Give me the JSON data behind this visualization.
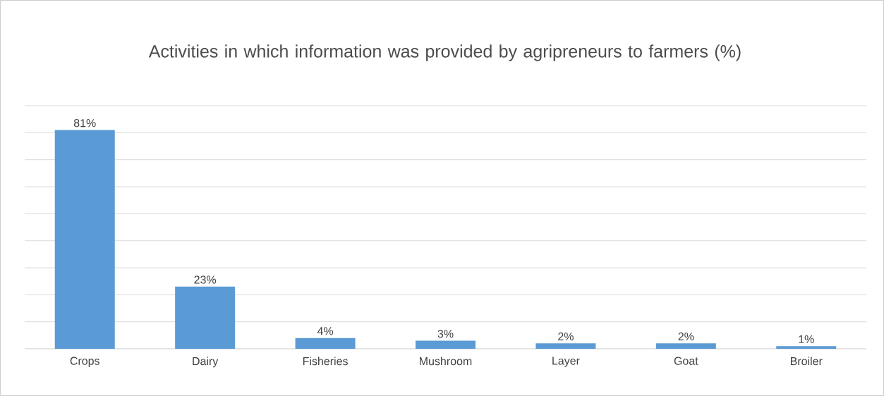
{
  "chart_data": {
    "type": "bar",
    "title": "Activities in which information was provided by agripreneurs to farmers (%)",
    "categories": [
      "Crops",
      "Dairy",
      "Fisheries",
      "Mushroom",
      "Layer",
      "Goat",
      "Broiler"
    ],
    "values": [
      81,
      23,
      4,
      3,
      2,
      2,
      1
    ],
    "value_labels": [
      "81%",
      "23%",
      "4%",
      "3%",
      "2%",
      "2%",
      "1%"
    ],
    "color": "#5b9bd5",
    "ylim": [
      0,
      90
    ],
    "yticks": [
      {
        "value": 10,
        "label": null
      },
      {
        "value": 20,
        "label": null
      },
      {
        "value": 30,
        "label": null
      },
      {
        "value": 40,
        "label": null
      },
      {
        "value": 50,
        "label": null
      },
      {
        "value": 60,
        "label": null
      },
      {
        "value": 70,
        "label": null
      },
      {
        "value": 80,
        "label": null
      },
      {
        "value": 90,
        "label": null
      }
    ],
    "grid": "y"
  }
}
